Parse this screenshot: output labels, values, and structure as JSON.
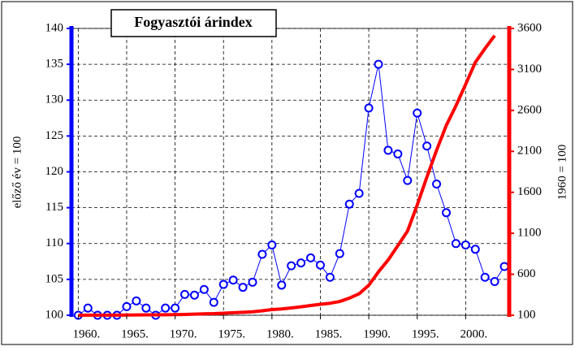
{
  "chart_data": {
    "type": "line",
    "title": "Fogyasztói árindex",
    "ylabel": "előző év = 100",
    "y2label": "1960 = 100",
    "x": [
      1960,
      1961,
      1962,
      1963,
      1964,
      1965,
      1966,
      1967,
      1968,
      1969,
      1970,
      1971,
      1972,
      1973,
      1974,
      1975,
      1976,
      1977,
      1978,
      1979,
      1980,
      1981,
      1982,
      1983,
      1984,
      1985,
      1986,
      1987,
      1988,
      1989,
      1990,
      1991,
      1992,
      1993,
      1994,
      1995,
      1996,
      1997,
      1998,
      1999,
      2000,
      2001,
      2002,
      2003,
      2004
    ],
    "series": [
      {
        "name": "előző év = 100",
        "color": "#0000ff",
        "axis": "y",
        "markers": true,
        "values": [
          100,
          101,
          100,
          100,
          100,
          101.2,
          102,
          101,
          100,
          101,
          101,
          102.9,
          102.8,
          103.6,
          101.8,
          104.3,
          104.9,
          103.9,
          104.6,
          108.5,
          109.8,
          104.2,
          106.9,
          107.3,
          108,
          107,
          105.3,
          108.6,
          115.5,
          117,
          128.9,
          135,
          123,
          122.5,
          118.8,
          128.2,
          123.6,
          118.3,
          114.3,
          110,
          109.8,
          109.2,
          105.3,
          104.7,
          106.8
        ]
      },
      {
        "name": "1960 = 100",
        "color": "#ff0000",
        "axis": "y2",
        "markers": false,
        "values": [
          100,
          101,
          101,
          101,
          101,
          102.2,
          104.2,
          105.3,
          105.3,
          106.3,
          107.4,
          110.5,
          113.6,
          117.7,
          119.8,
          124.9,
          131,
          136.1,
          142.4,
          154.5,
          169.6,
          176.8,
          188.9,
          202.8,
          219,
          234.3,
          246.7,
          267.9,
          309.4,
          362,
          466.6,
          629.9,
          774.8,
          949.1,
          1127.5,
          1445.5,
          1786.6,
          2113.5,
          2415.8,
          2657.4,
          2917.8,
          3186.2,
          3355.1,
          3512.8,
          null
        ]
      }
    ],
    "xlim": [
      1959.3,
      2004.5
    ],
    "xticks": [
      {
        "value": 1960,
        "label": "1960."
      },
      {
        "value": 1965,
        "label": "1965."
      },
      {
        "value": 1970,
        "label": "1970."
      },
      {
        "value": 1975,
        "label": "1975."
      },
      {
        "value": 1980,
        "label": "1980."
      },
      {
        "value": 1985,
        "label": "1985."
      },
      {
        "value": 1990,
        "label": "1990."
      },
      {
        "value": 1995,
        "label": "1995."
      },
      {
        "value": 2000,
        "label": "2000."
      }
    ],
    "ylim": [
      100,
      140
    ],
    "yticks": [
      100,
      105,
      110,
      115,
      120,
      125,
      130,
      135,
      140
    ],
    "y2lim": [
      100,
      3600
    ],
    "y2ticks": [
      100,
      600,
      1100,
      1600,
      2100,
      2600,
      3100,
      3600
    ],
    "grid": true
  }
}
